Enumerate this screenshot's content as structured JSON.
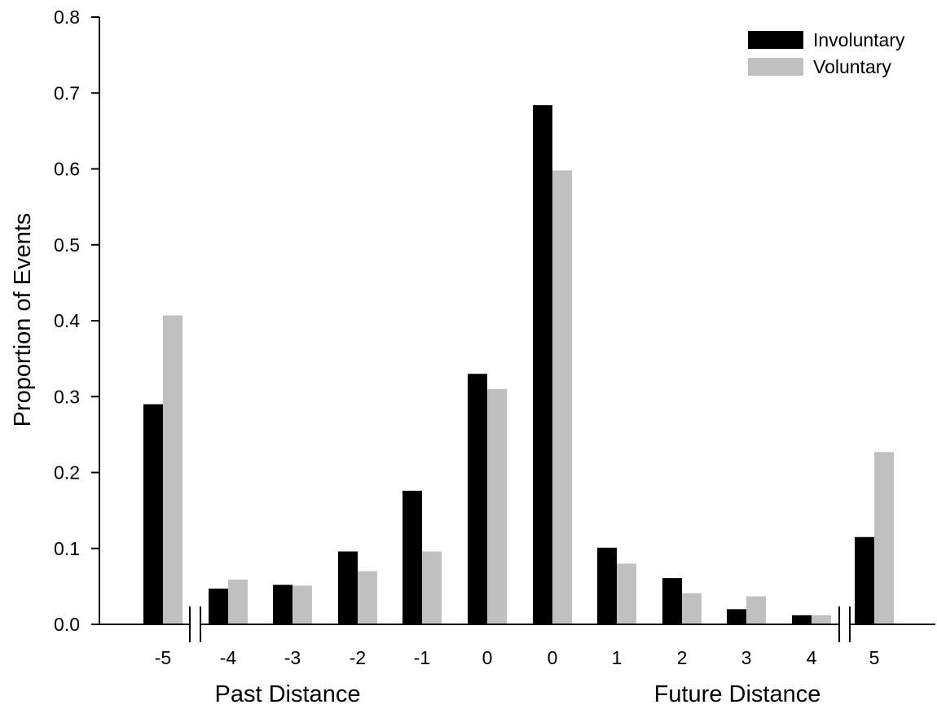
{
  "chart_data": {
    "type": "bar",
    "categories": [
      "-5",
      "-4",
      "-3",
      "-2",
      "-1",
      "0",
      "0",
      "1",
      "2",
      "3",
      "4",
      "5"
    ],
    "series": [
      {
        "name": "Involuntary",
        "color": "#000000",
        "values": [
          0.29,
          0.047,
          0.052,
          0.096,
          0.176,
          0.33,
          0.684,
          0.101,
          0.061,
          0.02,
          0.012,
          0.115
        ]
      },
      {
        "name": "Voluntary",
        "color": "#c0c0c0",
        "values": [
          0.407,
          0.059,
          0.051,
          0.07,
          0.096,
          0.31,
          0.598,
          0.08,
          0.041,
          0.037,
          0.012,
          0.227
        ]
      }
    ],
    "ylabel": "Proportion of Events",
    "xlabels": {
      "past": "Past Distance",
      "future": "Future Distance"
    },
    "ylim": [
      0,
      0.8
    ],
    "yticks": [
      "0.0",
      "0.1",
      "0.2",
      "0.3",
      "0.4",
      "0.5",
      "0.6",
      "0.7",
      "0.8"
    ],
    "axis_breaks": "between -5 and -4; between 4 and 5",
    "grid": false,
    "legend_position": "top-right"
  }
}
